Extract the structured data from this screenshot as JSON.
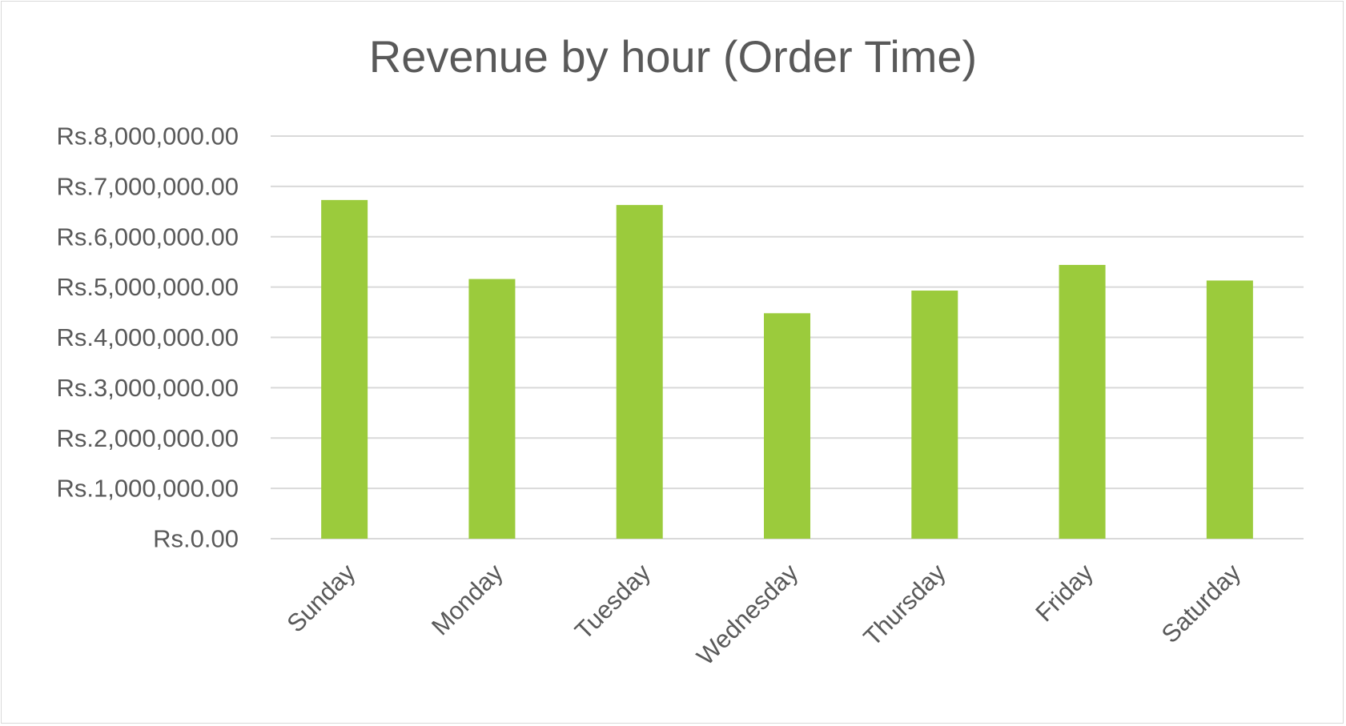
{
  "chart_data": {
    "type": "bar",
    "title": "Revenue by hour (Order Time)",
    "xlabel": "",
    "ylabel": "",
    "categories": [
      "Sunday",
      "Monday",
      "Tuesday",
      "Wednesday",
      "Thursday",
      "Friday",
      "Saturday"
    ],
    "values": [
      6730000,
      5160000,
      6630000,
      4480000,
      4930000,
      5440000,
      5130000
    ],
    "ylim": [
      0,
      8000000
    ],
    "y_ticks": [
      0,
      1000000,
      2000000,
      3000000,
      4000000,
      5000000,
      6000000,
      7000000,
      8000000
    ],
    "y_tick_labels": [
      "Rs.0.00",
      "Rs.1,000,000.00",
      "Rs.2,000,000.00",
      "Rs.3,000,000.00",
      "Rs.4,000,000.00",
      "Rs.5,000,000.00",
      "Rs.6,000,000.00",
      "Rs.7,000,000.00",
      "Rs.8,000,000.00"
    ],
    "grid": true,
    "legend": "none",
    "bar_color": "#9BCB3C",
    "grid_color": "#D9D9D9",
    "text_color": "#595959"
  }
}
